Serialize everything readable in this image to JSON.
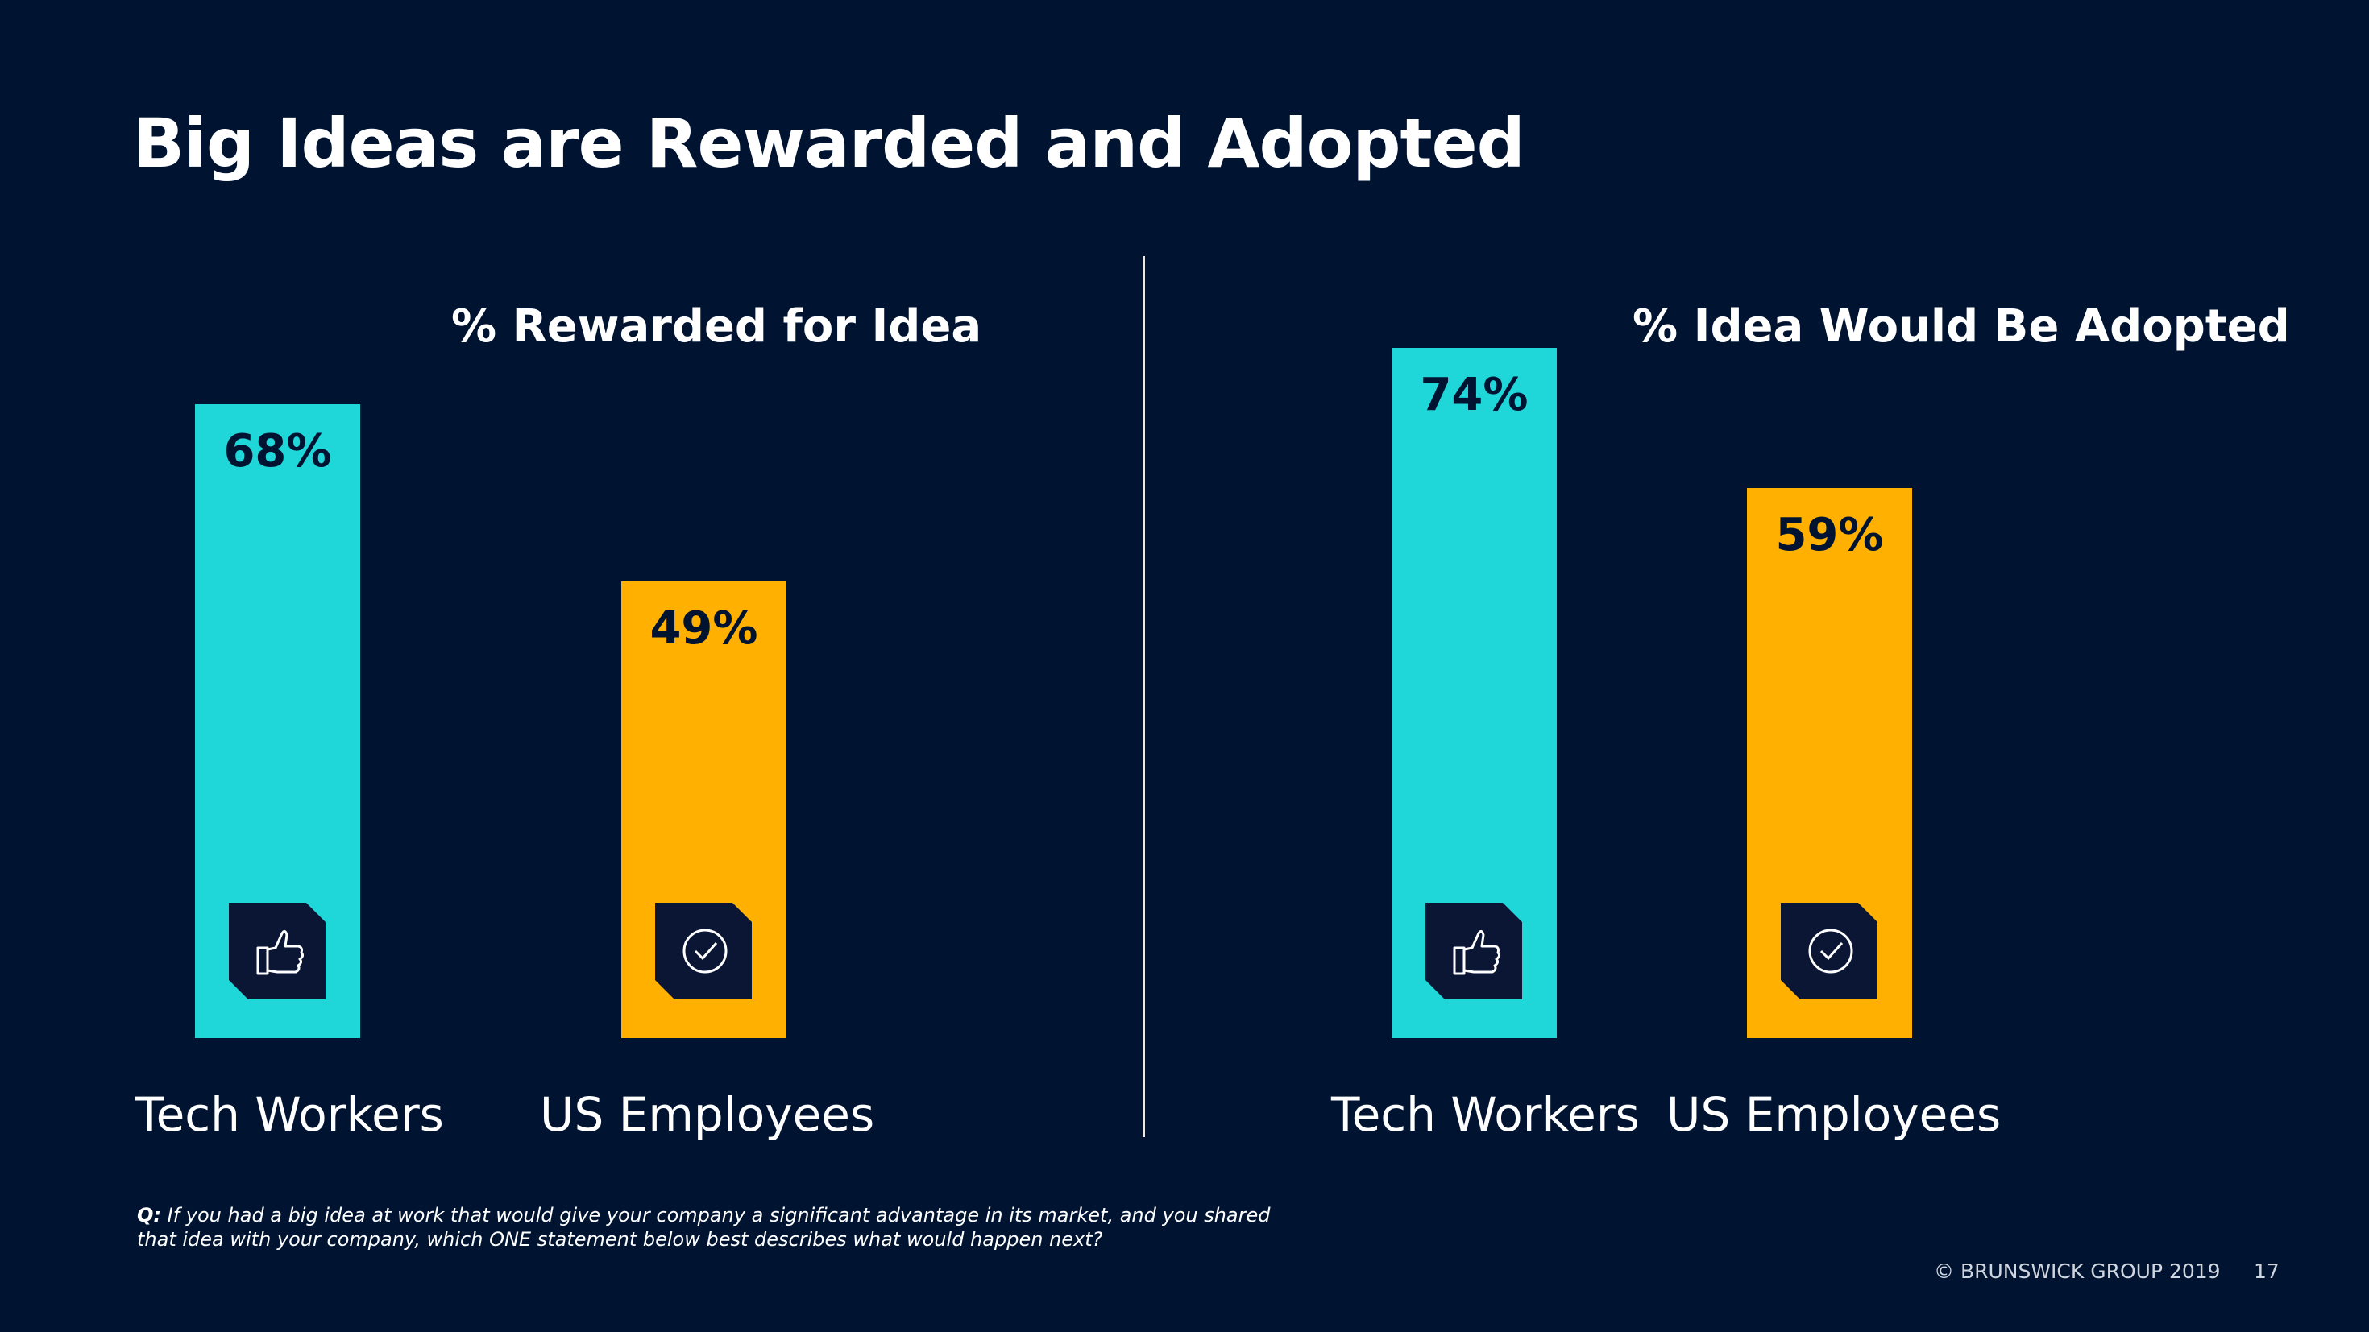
{
  "slide": {
    "title": "Big Ideas are Rewarded and Adopted",
    "question_prefix": "Q:",
    "question_text": "If you had a big idea at work that would give your company a significant advantage in its market, and you shared that idea with your company, which ONE statement below best describes what would happen next?",
    "copyright": "© BRUNSWICK GROUP 2019",
    "page_number": "17"
  },
  "colors": {
    "background": "#001432",
    "tech": "#1fd6d9",
    "us": "#ffb000",
    "badge": "#0a1633"
  },
  "chart_data": [
    {
      "type": "bar",
      "title": "% Rewarded for Idea",
      "categories": [
        "Tech Workers",
        "US Employees"
      ],
      "values": [
        68,
        49
      ],
      "value_labels": [
        "68%",
        "49%"
      ],
      "icons": [
        "thumbs-up-icon",
        "check-circle-icon"
      ],
      "ylim": [
        0,
        100
      ],
      "xlabel": "",
      "ylabel": ""
    },
    {
      "type": "bar",
      "title": "% Idea Would Be Adopted",
      "categories": [
        "Tech Workers",
        "US Employees"
      ],
      "values": [
        74,
        59
      ],
      "value_labels": [
        "74%",
        "59%"
      ],
      "icons": [
        "thumbs-up-icon",
        "check-circle-icon"
      ],
      "ylim": [
        0,
        100
      ],
      "xlabel": "",
      "ylabel": ""
    }
  ]
}
